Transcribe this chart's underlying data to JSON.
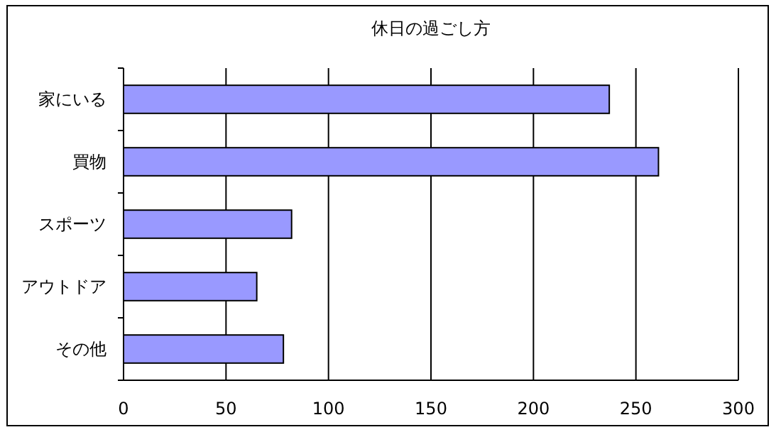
{
  "chart_data": {
    "type": "bar",
    "orientation": "horizontal",
    "title": "休日の過ごし方",
    "categories": [
      "家にいる",
      "買物",
      "スポーツ",
      "アウトドア",
      "その他"
    ],
    "values": [
      237,
      261,
      82,
      65,
      78
    ],
    "color": "#9999ff",
    "xlim": [
      0,
      300
    ],
    "xticks": [
      0,
      50,
      100,
      150,
      200,
      250,
      300
    ],
    "grid": "x"
  }
}
